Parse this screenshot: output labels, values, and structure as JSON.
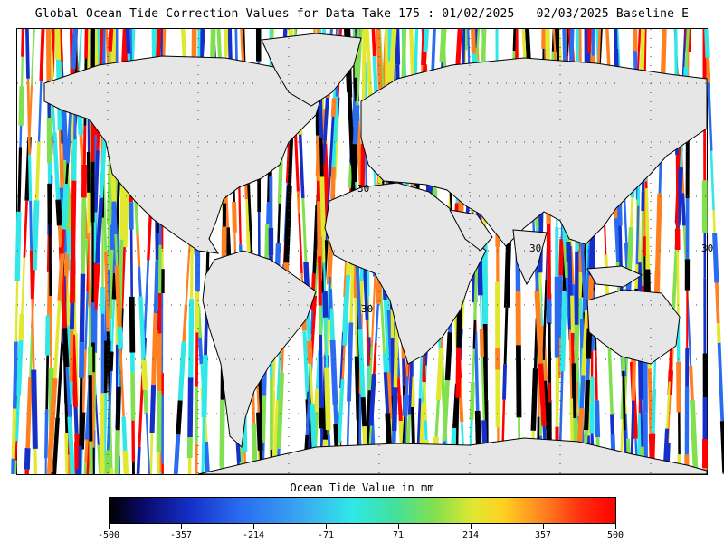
{
  "title": "Global Ocean Tide Correction Values for Data Take 175 : 01/02/2025 — 02/03/2025 Baseline—E",
  "map": {
    "lat_labels": [
      "30",
      "30",
      "30",
      "30"
    ]
  },
  "colorbar": {
    "title": "Ocean Tide Value in mm",
    "ticks": [
      "-500",
      "-357",
      "-214",
      "-71",
      "71",
      "214",
      "357",
      "500"
    ],
    "colors": [
      "#000000",
      "#1530c8",
      "#2a6cf0",
      "#30e8e8",
      "#80e050",
      "#e0e830",
      "#ff8020",
      "#ff0000"
    ]
  }
}
